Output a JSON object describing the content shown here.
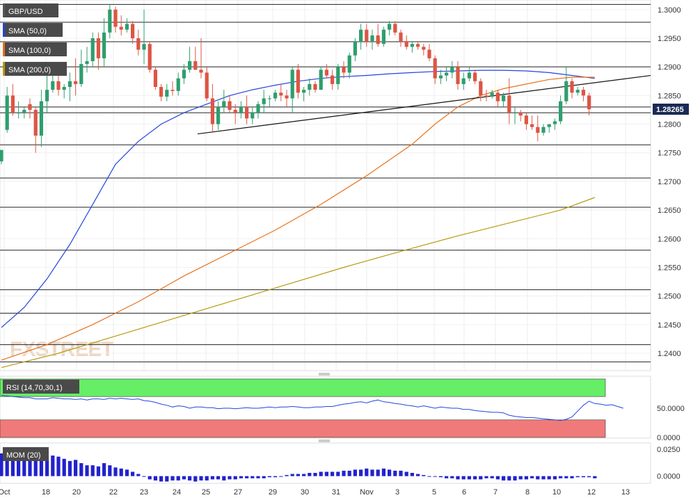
{
  "watermark": "FXSTREET",
  "legend": [
    {
      "label": "GBP/USD",
      "color": "#555555"
    },
    {
      "label": "SMA (50,0)",
      "color": "#2244dd"
    },
    {
      "label": "SMA (100,0)",
      "color": "#e8701a"
    },
    {
      "label": "SMA (200,0)",
      "color": "#b59a10"
    }
  ],
  "colors": {
    "up": "#2e9e6e",
    "down": "#dd5544",
    "sma50": "#2244dd",
    "sma100": "#e8701a",
    "sma200": "#b59a10",
    "trend": "#111111",
    "rsi_over": "#66ee66",
    "rsi_under": "#f07a7a",
    "rsi_line": "#2244dd",
    "mom_bar": "#2222cc",
    "last_tag": "#1a2a55"
  },
  "chart_data": [
    {
      "type": "candlestick",
      "title": "GBP/USD",
      "last_price": "1.28265",
      "ylim": [
        1.238,
        1.301
      ],
      "y_ticks": [
        "1.3000",
        "1.2950",
        "1.2900",
        "1.2850",
        "1.2800",
        "1.2750",
        "1.2700",
        "1.2650",
        "1.2600",
        "1.2550",
        "1.2500",
        "1.2450",
        "1.2400"
      ],
      "x_ticks": [
        "Oct",
        "18",
        "20",
        "22",
        "23",
        "24",
        "25",
        "27",
        "29",
        "30",
        "31",
        "Nov",
        "3",
        "5",
        "6",
        "7",
        "8",
        "10",
        "12",
        "13"
      ],
      "horizontal_levels": [
        1.3009,
        1.2978,
        1.2944,
        1.29,
        1.283,
        1.282,
        1.2764,
        1.2706,
        1.2655,
        1.258,
        1.2511,
        1.247,
        1.2415,
        1.2385
      ],
      "trendline": {
        "from": [
          "24",
          1.2783
        ],
        "to": [
          "13",
          1.2885
        ]
      },
      "candles": [
        [
          1.2735,
          1.2755,
          1.273,
          1.2755
        ],
        [
          1.279,
          1.2865,
          1.2785,
          1.285
        ],
        [
          1.285,
          1.287,
          1.2815,
          1.282
        ],
        [
          1.282,
          1.284,
          1.281,
          1.282
        ],
        [
          1.282,
          1.283,
          1.281,
          1.2825
        ],
        [
          1.2835,
          1.2845,
          1.281,
          1.2825
        ],
        [
          1.2825,
          1.283,
          1.275,
          1.278
        ],
        [
          1.278,
          1.286,
          1.276,
          1.284
        ],
        [
          1.284,
          1.2885,
          1.282,
          1.286
        ],
        [
          1.286,
          1.289,
          1.2855,
          1.2875
        ],
        [
          1.2875,
          1.289,
          1.285,
          1.286
        ],
        [
          1.286,
          1.287,
          1.2845,
          1.2865
        ],
        [
          1.2865,
          1.289,
          1.284,
          1.2875
        ],
        [
          1.2875,
          1.2915,
          1.285,
          1.287
        ],
        [
          1.287,
          1.293,
          1.2865,
          1.2905
        ],
        [
          1.2905,
          1.2935,
          1.289,
          1.291
        ],
        [
          1.291,
          1.296,
          1.29,
          1.295
        ],
        [
          1.295,
          1.296,
          1.2895,
          1.2915
        ],
        [
          1.2915,
          1.2985,
          1.29,
          1.296
        ],
        [
          1.296,
          1.301,
          1.295,
          1.3
        ],
        [
          1.3,
          1.3005,
          1.296,
          1.297
        ],
        [
          1.297,
          1.299,
          1.2955,
          1.2965
        ],
        [
          1.2965,
          1.2985,
          1.296,
          1.2975
        ],
        [
          1.2975,
          1.298,
          1.294,
          1.295
        ],
        [
          1.295,
          1.2965,
          1.292,
          1.293
        ],
        [
          1.293,
          1.3,
          1.2905,
          1.294
        ],
        [
          1.294,
          1.2945,
          1.289,
          1.2895
        ],
        [
          1.2895,
          1.29,
          1.286,
          1.2865
        ],
        [
          1.2865,
          1.287,
          1.284,
          1.2848
        ],
        [
          1.2848,
          1.287,
          1.284,
          1.286
        ],
        [
          1.286,
          1.2875,
          1.285,
          1.2858
        ],
        [
          1.2858,
          1.289,
          1.285,
          1.288
        ],
        [
          1.288,
          1.2905,
          1.287,
          1.2895
        ],
        [
          1.2895,
          1.2935,
          1.289,
          1.291
        ],
        [
          1.291,
          1.2935,
          1.2895,
          1.2895
        ],
        [
          1.2895,
          1.295,
          1.288,
          1.289
        ],
        [
          1.289,
          1.29,
          1.284,
          1.2845
        ],
        [
          1.2845,
          1.287,
          1.2785,
          1.28
        ],
        [
          1.28,
          1.284,
          1.279,
          1.283
        ],
        [
          1.283,
          1.286,
          1.282,
          1.284
        ],
        [
          1.284,
          1.285,
          1.282,
          1.2825
        ],
        [
          1.2825,
          1.2835,
          1.28,
          1.282
        ],
        [
          1.282,
          1.284,
          1.281,
          1.283
        ],
        [
          1.283,
          1.285,
          1.28,
          1.281
        ],
        [
          1.281,
          1.283,
          1.28,
          1.282
        ],
        [
          1.282,
          1.284,
          1.281,
          1.2835
        ],
        [
          1.2835,
          1.286,
          1.282,
          1.2845
        ],
        [
          1.2845,
          1.285,
          1.283,
          1.2845
        ],
        [
          1.2845,
          1.286,
          1.284,
          1.2855
        ],
        [
          1.2855,
          1.287,
          1.284,
          1.285
        ],
        [
          1.285,
          1.286,
          1.283,
          1.2845
        ],
        [
          1.2845,
          1.29,
          1.282,
          1.2895
        ],
        [
          1.2895,
          1.2905,
          1.2845,
          1.2855
        ],
        [
          1.2855,
          1.2865,
          1.284,
          1.286
        ],
        [
          1.286,
          1.288,
          1.285,
          1.287
        ],
        [
          1.287,
          1.2875,
          1.2855,
          1.286
        ],
        [
          1.286,
          1.29,
          1.286,
          1.2895
        ],
        [
          1.2895,
          1.2905,
          1.288,
          1.2885
        ],
        [
          1.2885,
          1.2895,
          1.286,
          1.287
        ],
        [
          1.287,
          1.2905,
          1.286,
          1.29
        ],
        [
          1.29,
          1.291,
          1.288,
          1.289
        ],
        [
          1.289,
          1.2925,
          1.288,
          1.292
        ],
        [
          1.292,
          1.295,
          1.291,
          1.2945
        ],
        [
          1.2945,
          1.2975,
          1.293,
          1.2965
        ],
        [
          1.2965,
          1.2975,
          1.2935,
          1.2945
        ],
        [
          1.2945,
          1.2965,
          1.293,
          1.2955
        ],
        [
          1.2955,
          1.2975,
          1.2935,
          1.294
        ],
        [
          1.294,
          1.297,
          1.2935,
          1.2965
        ],
        [
          1.2965,
          1.298,
          1.2955,
          1.2975
        ],
        [
          1.2975,
          1.298,
          1.2955,
          1.296
        ],
        [
          1.296,
          1.2965,
          1.2935,
          1.2945
        ],
        [
          1.2945,
          1.2955,
          1.293,
          1.2935
        ],
        [
          1.2935,
          1.2945,
          1.2925,
          1.294
        ],
        [
          1.294,
          1.2945,
          1.293,
          1.2935
        ],
        [
          1.2935,
          1.294,
          1.292,
          1.293
        ],
        [
          1.293,
          1.294,
          1.291,
          1.2915
        ],
        [
          1.2915,
          1.292,
          1.287,
          1.288
        ],
        [
          1.288,
          1.2895,
          1.287,
          1.2885
        ],
        [
          1.2885,
          1.29,
          1.2875,
          1.289
        ],
        [
          1.289,
          1.291,
          1.288,
          1.29
        ],
        [
          1.29,
          1.291,
          1.286,
          1.287
        ],
        [
          1.287,
          1.289,
          1.286,
          1.288
        ],
        [
          1.288,
          1.29,
          1.2875,
          1.289
        ],
        [
          1.289,
          1.2895,
          1.287,
          1.2875
        ],
        [
          1.2875,
          1.288,
          1.284,
          1.285
        ],
        [
          1.285,
          1.286,
          1.284,
          1.2848
        ],
        [
          1.2848,
          1.286,
          1.2845,
          1.2855
        ],
        [
          1.2855,
          1.286,
          1.283,
          1.284
        ],
        [
          1.284,
          1.2855,
          1.283,
          1.285
        ],
        [
          1.285,
          1.288,
          1.28,
          1.282
        ],
        [
          1.282,
          1.283,
          1.28,
          1.282
        ],
        [
          1.282,
          1.2825,
          1.2805,
          1.2815
        ],
        [
          1.2815,
          1.282,
          1.279,
          1.28
        ],
        [
          1.28,
          1.2815,
          1.279,
          1.2795
        ],
        [
          1.2795,
          1.2815,
          1.277,
          1.2785
        ],
        [
          1.2785,
          1.28,
          1.278,
          1.2795
        ],
        [
          1.2795,
          1.28,
          1.2785,
          1.28
        ],
        [
          1.28,
          1.281,
          1.279,
          1.2805
        ],
        [
          1.2805,
          1.285,
          1.28,
          1.284
        ],
        [
          1.284,
          1.29,
          1.2835,
          1.2875
        ],
        [
          1.2875,
          1.288,
          1.2845,
          1.2855
        ],
        [
          1.2855,
          1.2865,
          1.285,
          1.286
        ],
        [
          1.286,
          1.2865,
          1.284,
          1.285
        ],
        [
          1.285,
          1.2855,
          1.2815,
          1.2826
        ]
      ],
      "sma": [
        {
          "name": "SMA (50,0)",
          "points": [
            [
              0,
              1.2445
            ],
            [
              4,
              1.248
            ],
            [
              8,
              1.253
            ],
            [
              12,
              1.259
            ],
            [
              16,
              1.266
            ],
            [
              20,
              1.273
            ],
            [
              24,
              1.277
            ],
            [
              28,
              1.28
            ],
            [
              32,
              1.282
            ],
            [
              36,
              1.2835
            ],
            [
              40,
              1.285
            ],
            [
              44,
              1.286
            ],
            [
              48,
              1.2868
            ],
            [
              52,
              1.2875
            ],
            [
              56,
              1.288
            ],
            [
              60,
              1.2883
            ],
            [
              64,
              1.2885
            ],
            [
              68,
              1.2888
            ],
            [
              72,
              1.289
            ],
            [
              76,
              1.2892
            ],
            [
              80,
              1.2893
            ],
            [
              84,
              1.2894
            ],
            [
              88,
              1.2894
            ],
            [
              92,
              1.2893
            ],
            [
              96,
              1.289
            ],
            [
              100,
              1.2885
            ],
            [
              104,
              1.288
            ]
          ]
        },
        {
          "name": "SMA (100,0)",
          "points": [
            [
              0,
              1.2388
            ],
            [
              8,
              1.2415
            ],
            [
              16,
              1.245
            ],
            [
              24,
              1.249
            ],
            [
              32,
              1.2535
            ],
            [
              40,
              1.2575
            ],
            [
              48,
              1.2615
            ],
            [
              56,
              1.266
            ],
            [
              64,
              1.271
            ],
            [
              72,
              1.2765
            ],
            [
              76,
              1.28
            ],
            [
              80,
              1.283
            ],
            [
              84,
              1.285
            ],
            [
              88,
              1.2862
            ],
            [
              92,
              1.287
            ],
            [
              96,
              1.2878
            ],
            [
              100,
              1.2882
            ],
            [
              104,
              1.2882
            ]
          ]
        },
        {
          "name": "SMA (200,0)",
          "points": [
            [
              0,
              1.2375
            ],
            [
              10,
              1.24
            ],
            [
              20,
              1.243
            ],
            [
              30,
              1.246
            ],
            [
              40,
              1.249
            ],
            [
              50,
              1.252
            ],
            [
              60,
              1.255
            ],
            [
              70,
              1.2578
            ],
            [
              80,
              1.2605
            ],
            [
              90,
              1.263
            ],
            [
              98,
              1.265
            ],
            [
              104,
              1.2672
            ]
          ]
        }
      ]
    },
    {
      "type": "line",
      "title": "RSI (14,70,30,1)",
      "ylim": [
        0,
        100
      ],
      "y_ticks": [
        "50.0000",
        "0.0000"
      ],
      "bands": {
        "overbought": 70,
        "oversold": 30
      },
      "values": [
        72,
        71,
        70,
        69,
        68,
        68,
        66,
        66,
        66,
        68,
        67,
        66,
        66,
        65,
        66,
        64,
        66,
        66,
        65,
        67,
        66,
        67,
        66,
        65,
        66,
        63,
        62,
        60,
        57,
        55,
        52,
        54,
        53,
        50,
        52,
        52,
        51,
        51,
        49,
        50,
        50,
        49,
        50,
        51,
        50,
        50,
        51,
        52,
        51,
        52,
        52,
        53,
        52,
        51,
        51,
        52,
        52,
        53,
        53,
        55,
        57,
        58,
        60,
        61,
        59,
        62,
        64,
        61,
        60,
        58,
        57,
        55,
        54,
        52,
        54,
        52,
        50,
        52,
        51,
        50,
        50,
        48,
        48,
        46,
        45,
        44,
        43,
        43,
        42,
        38,
        36,
        35,
        34,
        34,
        33,
        32,
        31,
        30,
        29,
        31,
        35,
        45,
        55,
        62,
        58,
        57,
        55,
        56,
        53,
        50
      ]
    },
    {
      "type": "bar",
      "title": "MOM (20)",
      "ylim": [
        -0.006,
        0.03
      ],
      "y_ticks": [
        "0.0250",
        "0.0000"
      ],
      "values": [
        0.021,
        0.022,
        0.02,
        0.019,
        0.019,
        0.018,
        0.019,
        0.017,
        0.015,
        0.019,
        0.018,
        0.016,
        0.014,
        0.015,
        0.012,
        0.01,
        0.01,
        0.009,
        0.012,
        0.01,
        0.008,
        0.007,
        0.006,
        0.004,
        0.002,
        0.0,
        -0.003,
        -0.004,
        -0.005,
        -0.005,
        -0.004,
        -0.004,
        -0.003,
        -0.004,
        -0.005,
        -0.004,
        -0.004,
        -0.003,
        -0.003,
        -0.004,
        -0.003,
        -0.003,
        -0.002,
        -0.002,
        -0.002,
        -0.002,
        -0.002,
        -0.001,
        -0.001,
        0.0,
        0.001,
        0.002,
        0.002,
        0.002,
        0.003,
        0.003,
        0.004,
        0.004,
        0.004,
        0.004,
        0.005,
        0.005,
        0.006,
        0.006,
        0.007,
        0.006,
        0.006,
        0.007,
        0.006,
        0.005,
        0.005,
        0.004,
        0.003,
        0.002,
        0.001,
        0.0,
        0.0,
        -0.001,
        -0.002,
        -0.002,
        -0.003,
        -0.003,
        -0.003,
        -0.003,
        -0.003,
        -0.002,
        -0.002,
        -0.003,
        -0.004,
        -0.004,
        -0.004,
        -0.003,
        -0.003,
        -0.002,
        -0.003,
        -0.003,
        -0.003,
        -0.003,
        -0.002,
        -0.002,
        -0.002,
        -0.001,
        -0.001,
        -0.001,
        -0.002
      ]
    }
  ]
}
